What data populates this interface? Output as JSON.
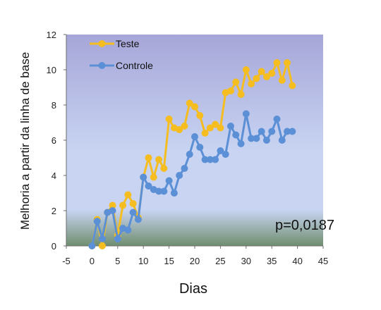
{
  "chart_data": {
    "type": "line",
    "xlabel": "Dias",
    "ylabel": "Melhoria a partir da linha de base",
    "xlim": [
      -5,
      45
    ],
    "ylim": [
      0,
      12
    ],
    "x_ticks": [
      -5,
      0,
      5,
      10,
      15,
      20,
      25,
      30,
      35,
      40,
      45
    ],
    "y_ticks": [
      0,
      2,
      4,
      6,
      8,
      10,
      12
    ],
    "grid": false,
    "legend_placement": "top-left",
    "annotation": "p=0,0187",
    "background": {
      "top": "#a6a6d8",
      "middle": "#c8d4f2",
      "bottom": "#6f8e6e"
    },
    "series": [
      {
        "name": "Teste",
        "color": "#f5bd1f",
        "x": [
          0,
          1,
          2,
          3,
          4,
          5,
          6,
          7,
          8,
          9,
          10,
          11,
          12,
          13,
          14,
          15,
          16,
          17,
          18,
          19,
          20,
          21,
          22,
          23,
          24,
          25,
          26,
          27,
          28,
          29,
          30,
          31,
          32,
          33,
          34,
          35,
          36,
          37,
          38,
          39
        ],
        "y": [
          0.0,
          1.5,
          0.0,
          1.9,
          2.3,
          0.6,
          2.3,
          2.9,
          2.4,
          1.6,
          3.9,
          5.0,
          3.9,
          4.9,
          4.4,
          7.2,
          6.7,
          6.6,
          6.8,
          8.1,
          7.9,
          7.4,
          6.4,
          6.7,
          6.9,
          6.7,
          8.7,
          8.8,
          9.3,
          8.6,
          10.0,
          9.2,
          9.5,
          9.9,
          9.6,
          9.8,
          10.4,
          9.4,
          10.4,
          9.1
        ]
      },
      {
        "name": "Controle",
        "color": "#5b8fd6",
        "x": [
          0,
          1,
          2,
          3,
          4,
          5,
          6,
          7,
          8,
          9,
          10,
          11,
          12,
          13,
          14,
          15,
          16,
          17,
          18,
          19,
          20,
          21,
          22,
          23,
          24,
          25,
          26,
          27,
          28,
          29,
          30,
          31,
          32,
          33,
          34,
          35,
          36,
          37,
          38,
          39
        ],
        "y": [
          0.0,
          1.4,
          0.4,
          1.9,
          2.0,
          0.4,
          1.0,
          0.9,
          1.9,
          1.5,
          3.9,
          3.4,
          3.2,
          3.1,
          3.1,
          3.7,
          3.0,
          4.0,
          4.4,
          5.2,
          6.2,
          5.6,
          4.9,
          4.9,
          4.9,
          5.4,
          5.2,
          6.8,
          6.3,
          5.8,
          7.5,
          6.1,
          6.1,
          6.5,
          6.0,
          6.5,
          7.2,
          6.0,
          6.5,
          6.5
        ]
      }
    ]
  }
}
